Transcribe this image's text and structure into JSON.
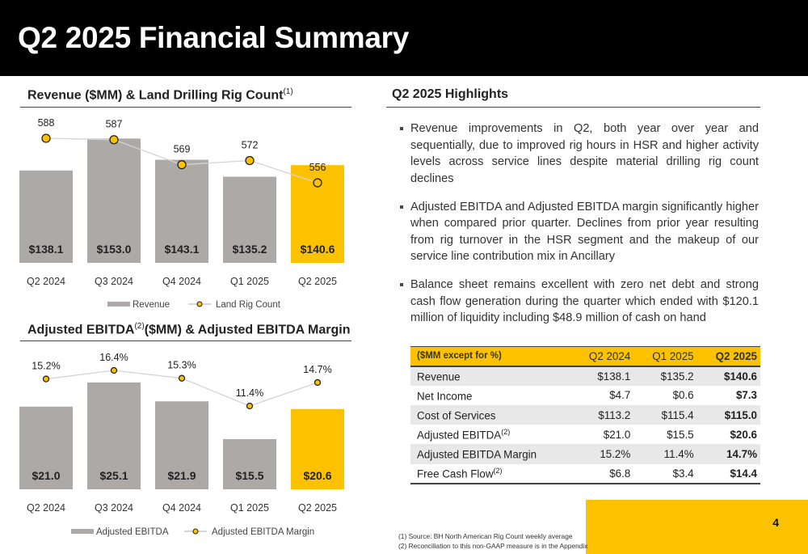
{
  "page": {
    "title": "Q2 2025 Financial Summary",
    "page_number": "4",
    "colors": {
      "header_bg": "#000000",
      "accent": "#FCC200",
      "bar_gray": "#ADA9A7",
      "table_shade": "#E8E8E8"
    }
  },
  "chart_data": [
    {
      "type": "bar",
      "title": "Revenue ($MM) & Land Drilling Rig Count",
      "title_sup": "(1)",
      "categories": [
        "Q2 2024",
        "Q3 2024",
        "Q4 2024",
        "Q1 2025",
        "Q2 2025"
      ],
      "series": [
        {
          "name": "Revenue",
          "type": "bar",
          "values": [
            138.1,
            153.0,
            143.1,
            135.2,
            140.6
          ],
          "labels": [
            "$138.1",
            "$153.0",
            "$143.1",
            "$135.2",
            "$140.6"
          ]
        },
        {
          "name": "Land Rig Count",
          "type": "line",
          "values": [
            588,
            587,
            569,
            572,
            556
          ],
          "labels": [
            "588",
            "587",
            "569",
            "572",
            "556"
          ]
        }
      ],
      "highlight_index": 4,
      "legend_position": "bottom",
      "grid": false
    },
    {
      "type": "bar",
      "title_parts": [
        "Adjusted EBITDA",
        "(2)",
        "($MM) & Adjusted EBITDA Margin"
      ],
      "categories": [
        "Q2 2024",
        "Q3 2024",
        "Q4 2024",
        "Q1 2025",
        "Q2 2025"
      ],
      "series": [
        {
          "name": "Adjusted EBITDA",
          "type": "bar",
          "values": [
            21.0,
            25.1,
            21.9,
            15.5,
            20.6
          ],
          "labels": [
            "$21.0",
            "$25.1",
            "$21.9",
            "$15.5",
            "$20.6"
          ]
        },
        {
          "name": "Adjusted EBITDA Margin",
          "type": "line",
          "values": [
            15.2,
            16.4,
            15.3,
            11.4,
            14.7
          ],
          "labels": [
            "15.2%",
            "16.4%",
            "15.3%",
            "11.4%",
            "14.7%"
          ]
        }
      ],
      "highlight_index": 4,
      "legend_position": "bottom",
      "grid": false
    }
  ],
  "highlights": {
    "title": "Q2 2025 Highlights",
    "bullets": [
      "Revenue improvements in Q2, both year over year and sequentially, due to improved rig hours in HSR and higher activity levels across service lines despite material drilling rig count declines",
      "Adjusted EBITDA and Adjusted EBITDA margin significantly higher when compared prior quarter. Declines from prior year resulting from rig turnover in the HSR segment and the makeup of our service line contribution mix in Ancillary",
      "Balance sheet remains excellent with zero net debt and strong cash flow generation during the quarter which ended with $120.1 million of liquidity including $48.9 million of cash on hand"
    ]
  },
  "table": {
    "header": [
      "($MM except for %)",
      "Q2 2024",
      "Q1 2025",
      "Q2 2025"
    ],
    "rows": [
      {
        "label": "Revenue",
        "sup": "",
        "values": [
          "$138.1",
          "$135.2",
          "$140.6"
        ]
      },
      {
        "label": "Net Income",
        "sup": "",
        "values": [
          "$4.7",
          "$0.6",
          "$7.3"
        ]
      },
      {
        "label": "Cost of Services",
        "sup": "",
        "values": [
          "$113.2",
          "$115.4",
          "$115.0"
        ]
      },
      {
        "label": "Adjusted EBITDA",
        "sup": "(2)",
        "values": [
          "$21.0",
          "$15.5",
          "$20.6"
        ]
      },
      {
        "label": "Adjusted EBITDA Margin",
        "sup": "",
        "values": [
          "15.2%",
          "11.4%",
          "14.7%"
        ]
      },
      {
        "label": "Free Cash Flow",
        "sup": "(2)",
        "values": [
          "$6.8",
          "$3.4",
          "$14.4"
        ]
      }
    ]
  },
  "footnotes": [
    "(1)   Source: BH North American Rig Count weekly average",
    "(2)   Reconciliation to this non-GAAP measure is in the Appendix"
  ]
}
